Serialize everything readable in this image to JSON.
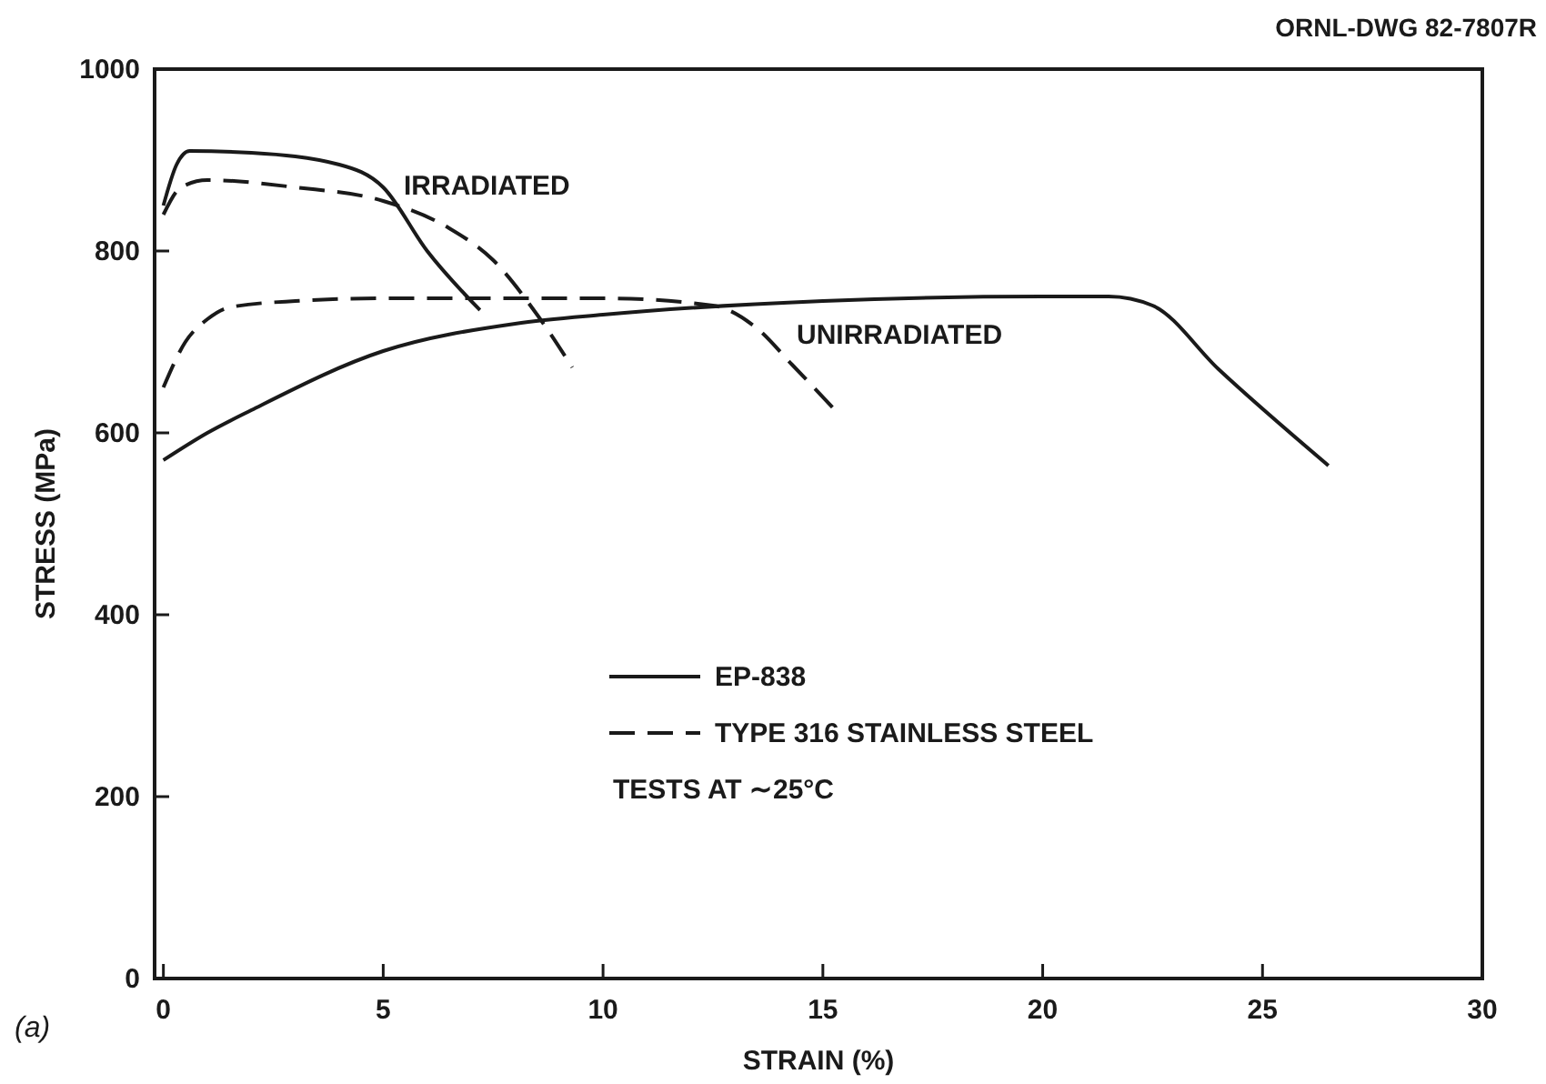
{
  "chart_data": {
    "type": "line",
    "xlabel": "STRAIN (%)",
    "ylabel": "STRESS (MPa)",
    "xlim": [
      -0.2,
      30
    ],
    "xticks": [
      0,
      5,
      10,
      15,
      20,
      25,
      30
    ],
    "ylim": [
      0,
      1000
    ],
    "yticks": [
      0,
      200,
      400,
      600,
      800,
      1000
    ],
    "grid": false,
    "legend": "bottom",
    "series": [
      {
        "name": "EP-838",
        "color": "#1a1a1a",
        "line_style": "solid",
        "x": [
          0,
          0.3,
          0.6,
          2,
          4,
          5,
          6,
          7.2
        ],
        "values": [
          850,
          895,
          910,
          908,
          895,
          870,
          800,
          735
        ]
      },
      {
        "name": "TYPE 316 STAINLESS STEEL",
        "color": "#1a1a1a",
        "line_style": "dashed",
        "x": [
          0,
          0.4,
          1,
          3,
          5,
          6.5,
          7.5,
          8.5,
          9.3
        ],
        "values": [
          840,
          870,
          878,
          870,
          855,
          825,
          790,
          730,
          672
        ]
      },
      {
        "color": "#1a1a1a",
        "line_style": "solid",
        "x": [
          0,
          1,
          2,
          5,
          8,
          10,
          15,
          20,
          21.5,
          22.5,
          24,
          26.5
        ],
        "values": [
          570,
          600,
          625,
          690,
          720,
          730,
          745,
          750,
          750,
          740,
          670,
          564
        ]
      },
      {
        "color": "#1a1a1a",
        "line_style": "dashed",
        "x": [
          0,
          0.5,
          1,
          1.5,
          3,
          5,
          10,
          12.5,
          13.5,
          14.3,
          15.3
        ],
        "values": [
          650,
          700,
          725,
          738,
          745,
          748,
          748,
          740,
          715,
          675,
          624
        ]
      }
    ],
    "annotations": [
      "IRRADIATED",
      "UNIRRADIATED",
      "TESTS AT ∼25°C",
      "ORNL-DWG 82-7807R",
      "(a)"
    ]
  }
}
